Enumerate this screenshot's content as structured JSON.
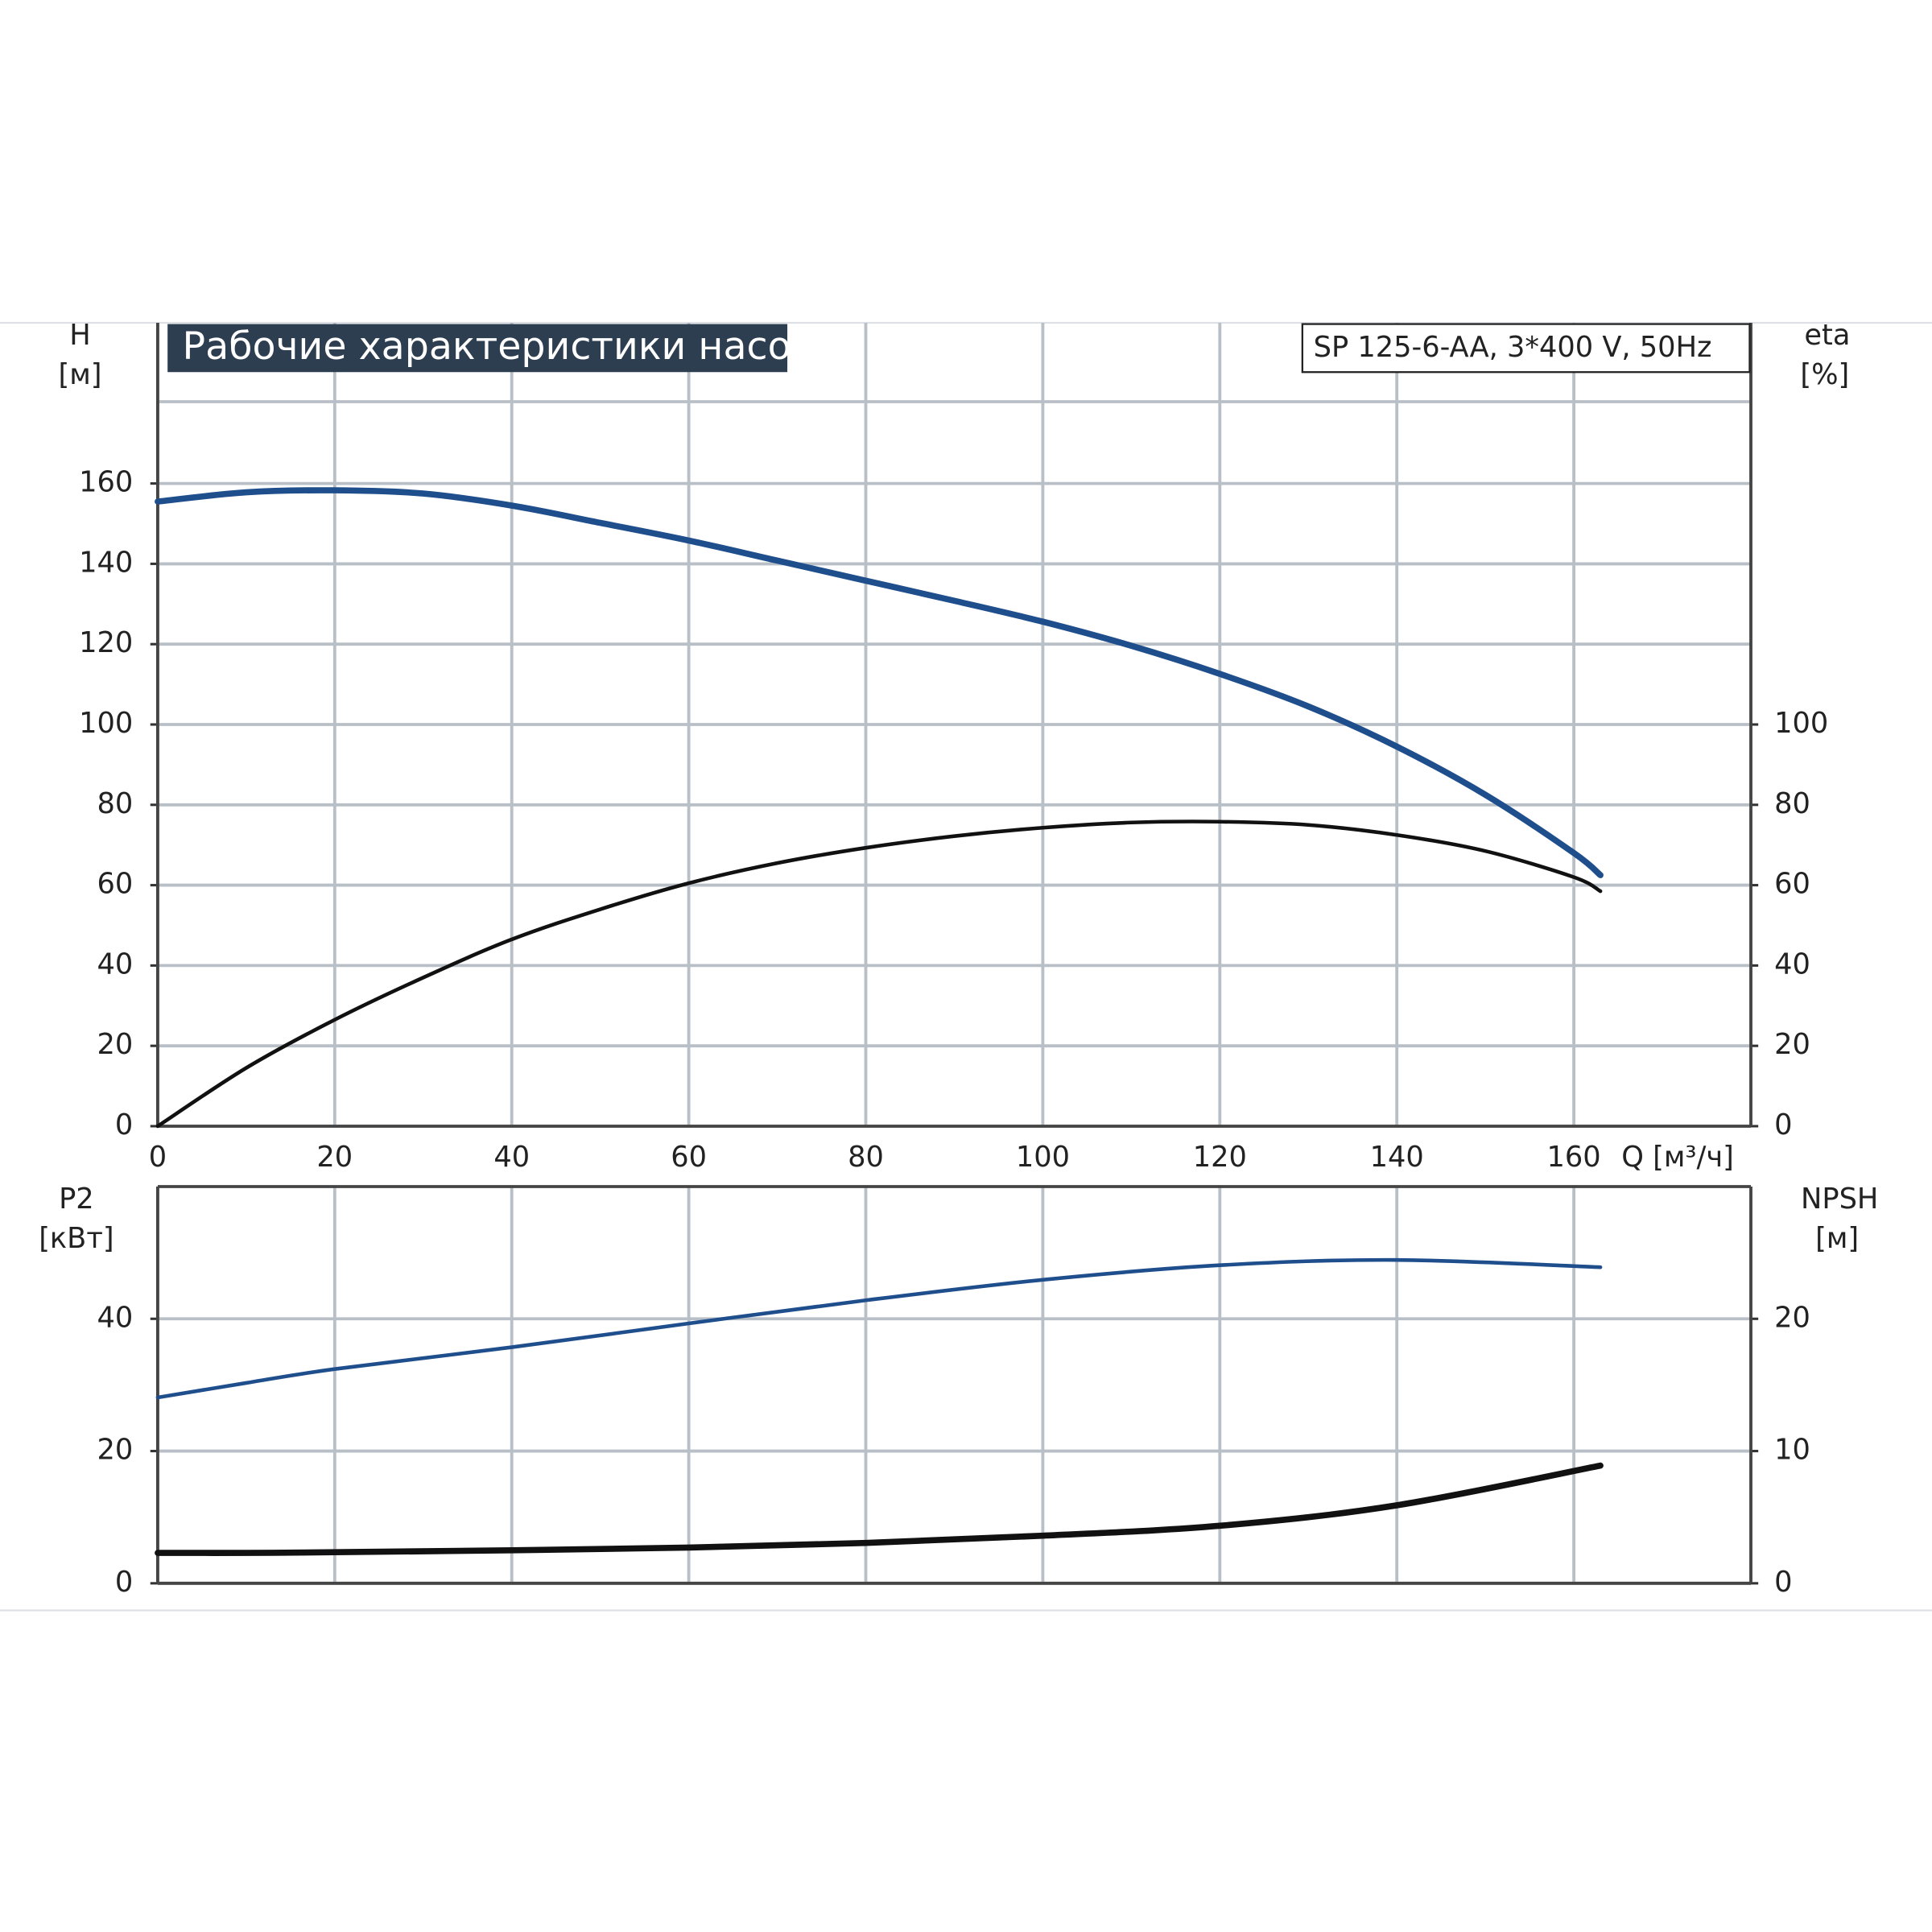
{
  "chart_data": [
    {
      "type": "line",
      "title": "Рабочие характеристики насоса",
      "subtitle": "SP 125-6-AA, 3*400 V, 50Hz",
      "xlabel": "Q [м³/ч]",
      "ylabel": "H",
      "yunit": "[м]",
      "y2label": "eta",
      "y2unit": "[%]",
      "x": [
        0,
        10,
        20,
        30,
        40,
        50,
        60,
        70,
        80,
        90,
        100,
        110,
        120,
        130,
        140,
        150,
        160,
        163
      ],
      "xlim": [
        0,
        180
      ],
      "xticks": [
        0,
        20,
        40,
        60,
        80,
        100,
        120,
        140,
        160
      ],
      "ylim": [
        0,
        200
      ],
      "yticks": [
        0,
        20,
        40,
        60,
        80,
        100,
        120,
        140,
        160
      ],
      "y2lim": [
        0,
        200
      ],
      "y2ticks": [
        0,
        20,
        40,
        60,
        80,
        100
      ],
      "grid": true,
      "series": [
        {
          "name": "H",
          "color": "#1f4e8c",
          "values": [
            155.5,
            157.8,
            158.3,
            157.5,
            154.5,
            150.2,
            145.8,
            140.8,
            135.8,
            130.8,
            125.6,
            119.6,
            112.6,
            104.5,
            94.5,
            82.5,
            68,
            62.5
          ]
        },
        {
          "name": "eta",
          "color": "#111111",
          "axis": "y2",
          "values": [
            0,
            14.5,
            26.5,
            37,
            46.5,
            54,
            60.5,
            65.5,
            69.3,
            72.2,
            74.3,
            75.6,
            75.8,
            75,
            72.5,
            68.5,
            62,
            58.5
          ]
        }
      ]
    },
    {
      "type": "line",
      "ylabel": "P2",
      "yunit": "[кВт]",
      "y2label": "NPSH",
      "y2unit": "[м]",
      "x": [
        0,
        10,
        20,
        40,
        60,
        80,
        100,
        120,
        140,
        163
      ],
      "xlim": [
        0,
        180
      ],
      "ylim": [
        0,
        60
      ],
      "yticks": [
        0,
        20,
        40
      ],
      "y2lim": [
        0,
        30
      ],
      "y2ticks": [
        0,
        10,
        20
      ],
      "grid": true,
      "series": [
        {
          "name": "P2",
          "color": "#1f4e8c",
          "values": [
            28.1,
            30.3,
            32.4,
            35.7,
            39.3,
            42.8,
            45.9,
            48.1,
            48.9,
            47.8
          ]
        },
        {
          "name": "NPSH",
          "color": "#111111",
          "axis": "y2",
          "values": [
            2.3,
            2.3,
            2.35,
            2.5,
            2.7,
            3.05,
            3.6,
            4.35,
            5.9,
            8.9
          ]
        }
      ]
    }
  ]
}
